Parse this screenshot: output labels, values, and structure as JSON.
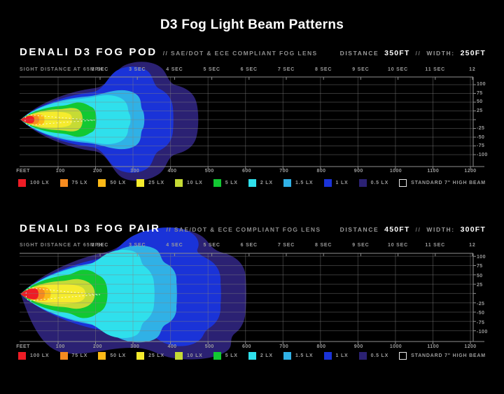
{
  "title": "D3 Fog Light Beam Patterns",
  "charts": [
    {
      "name": "DENALI D3 FOG POD",
      "lens_note": "// SAE/DOT & ECE COMPLIANT FOG LENS",
      "distance_label": "DISTANCE",
      "distance_value": "350FT",
      "stat_separator": "//",
      "width_label": "WIDTH:",
      "width_value": "250FT",
      "sight_distance_label": "SIGHT DISTANCE AT 65MPH",
      "seconds_ticks": [
        "2 SEC",
        "3 SEC",
        "4 SEC",
        "5 SEC",
        "6 SEC",
        "7 SEC",
        "8 SEC",
        "9 SEC",
        "10 SEC",
        "11 SEC",
        "12"
      ],
      "feet_ticks": [
        "FEET",
        "100",
        "200",
        "300",
        "400",
        "500",
        "600",
        "700",
        "800",
        "900",
        "1000",
        "1100",
        "1200"
      ],
      "right_axis_ticks": [
        "100",
        "75",
        "50",
        "25",
        "-25",
        "-50",
        "-75",
        "-100"
      ]
    },
    {
      "name": "DENALI D3 FOG PAIR",
      "lens_note": "// SAE/DOT & ECE COMPLIANT FOG LENS",
      "distance_label": "DISTANCE",
      "distance_value": "450FT",
      "stat_separator": "//",
      "width_label": "WIDTH:",
      "width_value": "300FT",
      "sight_distance_label": "SIGHT DISTANCE AT 65MPH",
      "seconds_ticks": [
        "2 SEC",
        "3 SEC",
        "4 SEC",
        "5 SEC",
        "6 SEC",
        "7 SEC",
        "8 SEC",
        "9 SEC",
        "10 SEC",
        "11 SEC",
        "12"
      ],
      "feet_ticks": [
        "FEET",
        "100",
        "200",
        "300",
        "400",
        "500",
        "600",
        "700",
        "800",
        "900",
        "1000",
        "1100",
        "1200"
      ],
      "right_axis_ticks": [
        "100",
        "75",
        "50",
        "25",
        "-25",
        "-50",
        "-75",
        "-100"
      ]
    }
  ],
  "legend": [
    {
      "label": "100 LX",
      "color": "#ee1c25"
    },
    {
      "label": "75 LX",
      "color": "#f68b1f"
    },
    {
      "label": "50 LX",
      "color": "#fbb917"
    },
    {
      "label": "25 LX",
      "color": "#f5eb2d"
    },
    {
      "label": "10 LX",
      "color": "#c6db35"
    },
    {
      "label": "5 LX",
      "color": "#12c832"
    },
    {
      "label": "2 LX",
      "color": "#2fe0ec"
    },
    {
      "label": "1.5 LX",
      "color": "#30b1e6"
    },
    {
      "label": "1 LX",
      "color": "#1a33d8"
    },
    {
      "label": "0.5 LX",
      "color": "#2b2173"
    },
    {
      "label": "STANDARD 7\" HIGH BEAM",
      "color": "outline"
    }
  ],
  "chart_data": [
    {
      "type": "contour",
      "title": "DENALI D3 FOG POD // SAE/DOT & ECE COMPLIANT FOG LENS",
      "stated_distance_ft": 350,
      "stated_width_ft": 250,
      "x_axis": {
        "label": "FEET",
        "range": [
          0,
          1200
        ],
        "ticks": [
          100,
          200,
          300,
          400,
          500,
          600,
          700,
          800,
          900,
          1000,
          1100,
          1200
        ]
      },
      "x_axis_top": {
        "label": "SIGHT DISTANCE AT 65MPH",
        "ticks_seconds": [
          2,
          3,
          4,
          5,
          6,
          7,
          8,
          9,
          10,
          11,
          12
        ]
      },
      "y_axis": {
        "range": [
          -100,
          100
        ],
        "ticks": [
          100,
          75,
          50,
          25,
          -25,
          -50,
          -75,
          -100
        ]
      },
      "series": [
        {
          "lux": 100,
          "max_distance_ft": 36,
          "max_width_ft": 20
        },
        {
          "lux": 75,
          "max_distance_ft": 49,
          "max_width_ft": 25
        },
        {
          "lux": 50,
          "max_distance_ft": 64,
          "max_width_ft": 30
        },
        {
          "lux": 25,
          "max_distance_ft": 137,
          "max_width_ft": 42
        },
        {
          "lux": 10,
          "max_distance_ft": 165,
          "max_width_ft": 57
        },
        {
          "lux": 5,
          "max_distance_ft": 200,
          "max_width_ft": 85
        },
        {
          "lux": 2,
          "max_distance_ft": 296,
          "max_width_ft": 130
        },
        {
          "lux": 1.5,
          "max_distance_ft": 327,
          "max_width_ft": 150
        },
        {
          "lux": 1,
          "max_distance_ft": 408,
          "max_width_ft": 175
        },
        {
          "lux": 0.5,
          "max_distance_ft": 471,
          "max_width_ft": 215
        }
      ],
      "reference_outline": {
        "label": "STANDARD 7\" HIGH BEAM",
        "approx_reach_ft": 198
      }
    },
    {
      "type": "contour",
      "title": "DENALI D3 FOG PAIR // SAE/DOT & ECE COMPLIANT FOG LENS",
      "stated_distance_ft": 450,
      "stated_width_ft": 300,
      "x_axis": {
        "label": "FEET",
        "range": [
          0,
          1200
        ],
        "ticks": [
          100,
          200,
          300,
          400,
          500,
          600,
          700,
          800,
          900,
          1000,
          1100,
          1200
        ]
      },
      "x_axis_top": {
        "label": "SIGHT DISTANCE AT 65MPH",
        "ticks_seconds": [
          2,
          3,
          4,
          5,
          6,
          7,
          8,
          9,
          10,
          11,
          12
        ]
      },
      "y_axis": {
        "range": [
          -100,
          100
        ],
        "ticks": [
          100,
          75,
          50,
          25,
          -25,
          -50,
          -75,
          -100
        ]
      },
      "series": [
        {
          "lux": 100,
          "max_distance_ft": 48,
          "max_width_ft": 34
        },
        {
          "lux": 75,
          "max_distance_ft": 64,
          "max_width_ft": 40
        },
        {
          "lux": 50,
          "max_distance_ft": 80,
          "max_width_ft": 46
        },
        {
          "lux": 25,
          "max_distance_ft": 173,
          "max_width_ft": 64
        },
        {
          "lux": 10,
          "max_distance_ft": 198,
          "max_width_ft": 86
        },
        {
          "lux": 5,
          "max_distance_ft": 232,
          "max_width_ft": 136
        },
        {
          "lux": 2,
          "max_distance_ft": 361,
          "max_width_ft": 205
        },
        {
          "lux": 1.5,
          "max_distance_ft": 417,
          "max_width_ft": 250
        },
        {
          "lux": 1,
          "max_distance_ft": 529,
          "max_width_ft": 290
        },
        {
          "lux": 0.5,
          "max_distance_ft": 598,
          "max_width_ft": 335
        }
      ],
      "reference_outline": {
        "label": "STANDARD 7\" HIGH BEAM",
        "approx_reach_ft": 212
      }
    }
  ]
}
